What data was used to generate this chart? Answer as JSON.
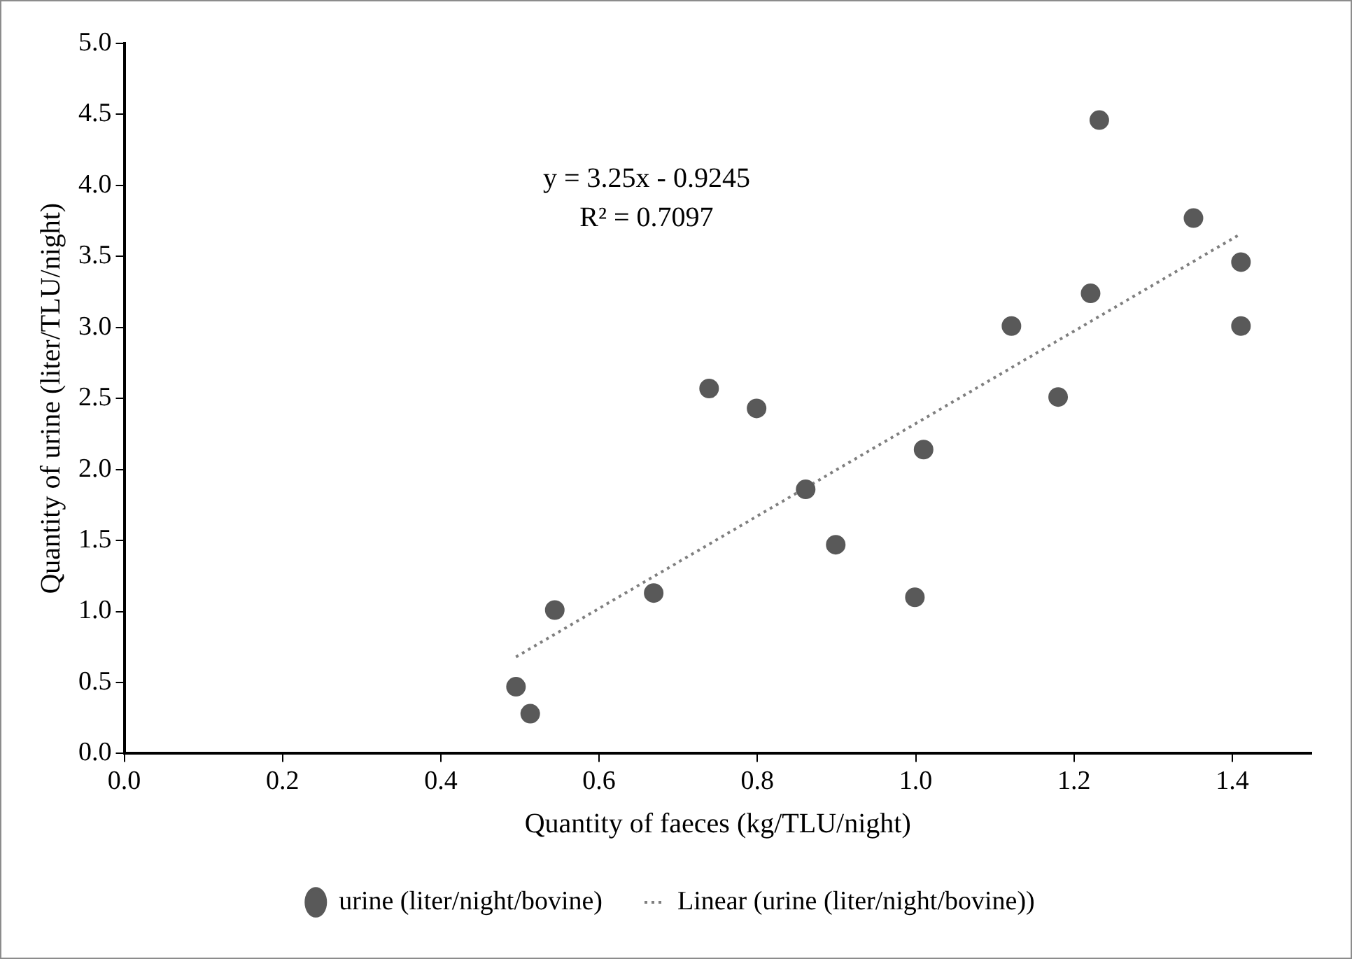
{
  "chart_data": {
    "type": "scatter",
    "xlabel": "Quantity of faeces (kg/TLU/night)",
    "ylabel": "Quantity of urine (liter/TLU/night)",
    "annotations": [
      "y = 3.25x - 0.9245",
      "R² = 0.7097"
    ],
    "series": [
      {
        "name": "urine (liter/night/bovine)",
        "color": "#595959",
        "marker": "circle",
        "x": [
          0.495,
          0.513,
          0.544,
          0.669,
          0.739,
          0.799,
          0.861,
          0.899,
          0.999,
          1.01,
          1.121,
          1.18,
          1.221,
          1.232,
          1.351,
          1.411,
          1.411
        ],
        "values": [
          0.47,
          0.28,
          1.01,
          1.13,
          2.57,
          2.43,
          1.86,
          1.47,
          1.1,
          2.14,
          3.01,
          2.51,
          3.24,
          4.46,
          3.77,
          3.46,
          3.01
        ]
      },
      {
        "name": "Linear (urine (liter/night/bovine))",
        "type": "line",
        "color": "#7f7f7f",
        "line_style": "dotted",
        "marker": "none",
        "x": [
          0.495,
          1.411
        ],
        "values": [
          0.68,
          3.66
        ]
      }
    ],
    "xlim": [
      0,
      1.5
    ],
    "xticks": [
      {
        "value": 0,
        "label": "0.0"
      },
      {
        "value": 0.2,
        "label": "0.2"
      },
      {
        "value": 0.4,
        "label": "0.4"
      },
      {
        "value": 0.6,
        "label": "0.6"
      },
      {
        "value": 0.8,
        "label": "0.8"
      },
      {
        "value": 1,
        "label": "1.0"
      },
      {
        "value": 1.2,
        "label": "1.2"
      },
      {
        "value": 1.4,
        "label": "1.4"
      }
    ],
    "ylim": [
      0,
      5
    ],
    "yticks": [
      {
        "value": 0,
        "label": "0.0"
      },
      {
        "value": 0.5,
        "label": "0.5"
      },
      {
        "value": 1,
        "label": "1.0"
      },
      {
        "value": 1.5,
        "label": "1.5"
      },
      {
        "value": 2,
        "label": "2.0"
      },
      {
        "value": 2.5,
        "label": "2.5"
      },
      {
        "value": 3,
        "label": "3.0"
      },
      {
        "value": 3.5,
        "label": "3.5"
      },
      {
        "value": 4,
        "label": "4.0"
      },
      {
        "value": 4.5,
        "label": "4.5"
      },
      {
        "value": 5,
        "label": "5.0"
      }
    ],
    "grid": false,
    "legend": "bottom"
  }
}
